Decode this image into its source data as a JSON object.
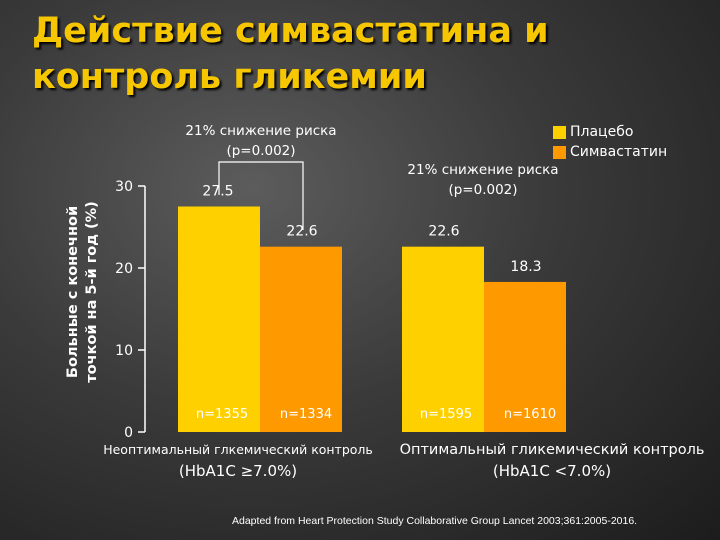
{
  "title_lines": [
    "Действие симвастатина и",
    "контроль гликемии"
  ],
  "legend": [
    {
      "label": "Плацебо",
      "color": "#ffd000"
    },
    {
      "label": "Симвастатин",
      "color": "#ff9900"
    }
  ],
  "source": "Adapted from Heart Protection Study Collaborative Group Lancet 2003;361:2005-2016.",
  "chart_data": {
    "type": "bar",
    "ylabel_lines": [
      "Больные с конечной",
      "точкой на 5-й год (%)"
    ],
    "ylim": [
      0,
      30
    ],
    "yticks": [
      "0",
      "10",
      "20",
      "30"
    ],
    "groups": [
      {
        "name_line1": "Неоптимальный глкемический контроль",
        "name_line2": "(HbA1C ≥7.0%)",
        "annotation_lines": [
          "21% снижение риска",
          "(p=0.002)"
        ],
        "bars": [
          {
            "series": "Плацебо",
            "value": 27.5,
            "value_label": "27.5",
            "n_label": "n=1355"
          },
          {
            "series": "Симвастатин",
            "value": 22.6,
            "value_label": "22.6",
            "n_label": "n=1334"
          }
        ]
      },
      {
        "name_line1": "Оптимальный гликемический контроль",
        "name_line2": "(HbA1C <7.0%)",
        "annotation_lines": [
          "21% снижение риска",
          "(p=0.002)"
        ],
        "bars": [
          {
            "series": "Плацебо",
            "value": 22.6,
            "value_label": "22.6",
            "n_label": "n=1595"
          },
          {
            "series": "Симвастатин",
            "value": 18.3,
            "value_label": "18.3",
            "n_label": "n=1610"
          }
        ]
      }
    ]
  }
}
